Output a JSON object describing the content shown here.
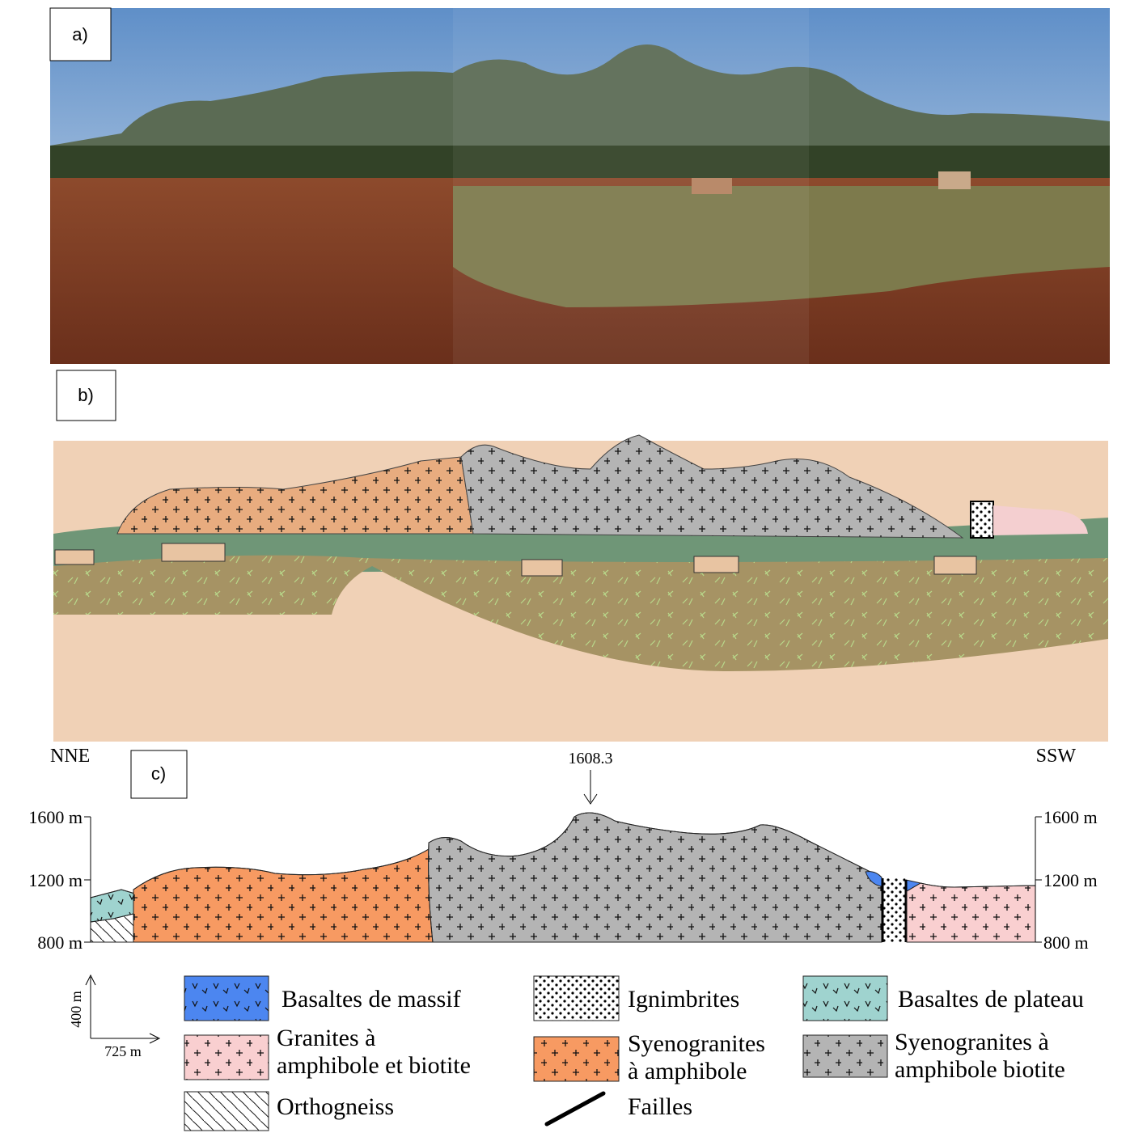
{
  "panels": {
    "a": "a)",
    "b": "b)",
    "c": "c)"
  },
  "cross_section": {
    "left_label": "NNE",
    "right_label": "SSW",
    "summit": "1608.3",
    "elevations_left": [
      "1600 m",
      "1200 m",
      "800 m"
    ],
    "elevations_right": [
      "1600 m",
      "1200 m",
      "800 m"
    ],
    "scale": {
      "vertical": "400 m",
      "horizontal": "725 m"
    }
  },
  "legend": [
    {
      "lines": [
        "Basaltes de massif"
      ]
    },
    {
      "lines": [
        "Ignimbrites"
      ]
    },
    {
      "lines": [
        "Basaltes de plateau"
      ]
    },
    {
      "lines": [
        "Granites à",
        "amphibole et biotite"
      ]
    },
    {
      "lines": [
        "Syenogranites",
        "à amphibole"
      ]
    },
    {
      "lines": [
        "Syenogranites à",
        "amphibole biotite"
      ]
    },
    {
      "lines": [
        "Orthogneiss"
      ]
    },
    {
      "lines": [
        "Failles"
      ]
    }
  ]
}
